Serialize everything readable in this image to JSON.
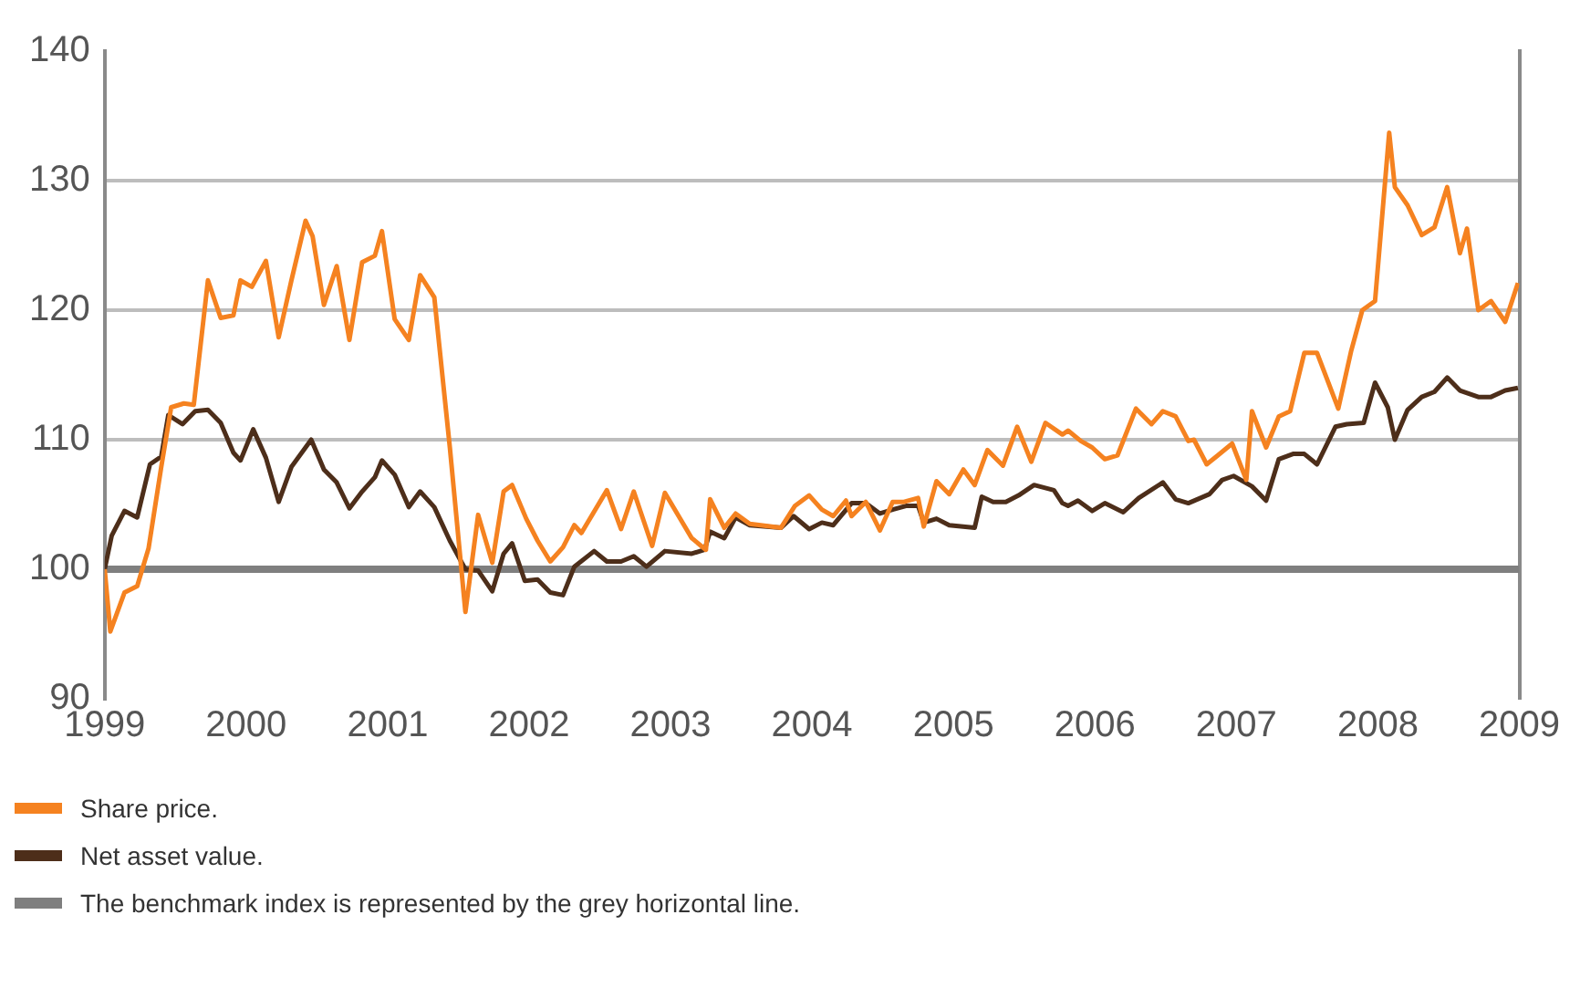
{
  "chart_data": {
    "type": "line",
    "xlim": [
      1999,
      2009
    ],
    "xticks": [
      1999,
      2000,
      2001,
      2002,
      2003,
      2004,
      2005,
      2006,
      2007,
      2008,
      2009
    ],
    "ylim": [
      90,
      140
    ],
    "yticks": [
      90,
      100,
      110,
      120,
      130,
      140
    ],
    "grid": "y",
    "legend": "bottom",
    "marker": "none",
    "line_style": "solid",
    "ref_lines": [
      {
        "axis": "y",
        "value": 100,
        "label": "The benchmark index is represented by the grey horizontal line.",
        "color": "#7f7f7f"
      }
    ],
    "series": [
      {
        "name": "Share price.",
        "color": "#f58220",
        "x": [
          1999.0,
          1999.04,
          1999.14,
          1999.23,
          1999.31,
          1999.4,
          1999.47,
          1999.56,
          1999.63,
          1999.73,
          1999.82,
          1999.91,
          1999.96,
          2000.04,
          2000.14,
          2000.23,
          2000.32,
          2000.42,
          2000.47,
          2000.55,
          2000.64,
          2000.73,
          2000.82,
          2000.91,
          2000.96,
          2001.05,
          2001.15,
          2001.23,
          2001.33,
          2001.44,
          2001.55,
          2001.64,
          2001.74,
          2001.82,
          2001.88,
          2001.98,
          2002.06,
          2002.15,
          2002.24,
          2002.32,
          2002.37,
          2002.55,
          2002.65,
          2002.74,
          2002.87,
          2002.96,
          2003.15,
          2003.25,
          2003.28,
          2003.38,
          2003.46,
          2003.56,
          2003.78,
          2003.88,
          2003.98,
          2004.07,
          2004.15,
          2004.24,
          2004.28,
          2004.38,
          2004.48,
          2004.57,
          2004.65,
          2004.75,
          2004.79,
          2004.88,
          2004.97,
          2005.07,
          2005.15,
          2005.24,
          2005.35,
          2005.45,
          2005.55,
          2005.65,
          2005.77,
          2005.81,
          2005.9,
          2005.98,
          2006.07,
          2006.16,
          2006.29,
          2006.4,
          2006.48,
          2006.57,
          2006.66,
          2006.7,
          2006.79,
          2006.87,
          2006.97,
          2007.07,
          2007.11,
          2007.21,
          2007.3,
          2007.38,
          2007.48,
          2007.57,
          2007.72,
          2007.81,
          2007.89,
          2007.98,
          2008.08,
          2008.12,
          2008.21,
          2008.31,
          2008.4,
          2008.49,
          2008.58,
          2008.63,
          2008.71,
          2008.8,
          2008.9,
          2008.99
        ],
        "values": [
          100,
          95.2,
          98.2,
          98.7,
          101.6,
          107.9,
          112.5,
          112.8,
          112.7,
          122.3,
          119.4,
          119.6,
          122.3,
          121.8,
          123.8,
          117.9,
          122.3,
          126.9,
          125.7,
          120.4,
          123.4,
          117.7,
          123.7,
          124.2,
          126.1,
          119.3,
          117.7,
          122.7,
          121,
          109.4,
          96.7,
          104.2,
          100.5,
          106,
          106.5,
          103.9,
          102.2,
          100.6,
          101.7,
          103.4,
          102.8,
          106.1,
          103.1,
          106,
          101.8,
          105.9,
          102.4,
          101.5,
          105.4,
          103.2,
          104.3,
          103.5,
          103.2,
          104.9,
          105.7,
          104.6,
          104.1,
          105.3,
          104.1,
          105.2,
          103,
          105.2,
          105.2,
          105.5,
          103.3,
          106.8,
          105.8,
          107.7,
          106.5,
          109.2,
          108,
          111,
          108.3,
          111.3,
          110.4,
          110.7,
          109.9,
          109.4,
          108.5,
          108.8,
          112.4,
          111.2,
          112.2,
          111.8,
          109.9,
          110,
          108.1,
          108.8,
          109.7,
          106.9,
          112.2,
          109.4,
          111.8,
          112.2,
          116.7,
          116.7,
          112.4,
          116.8,
          120,
          120.7,
          133.7,
          129.5,
          128.1,
          125.8,
          126.4,
          129.5,
          124.4,
          126.3,
          120,
          120.7,
          119.1,
          122.1
        ]
      },
      {
        "name": "Net asset value.",
        "color": "#4d2e1a",
        "x": [
          1999.0,
          1999.05,
          1999.14,
          1999.23,
          1999.32,
          1999.4,
          1999.45,
          1999.55,
          1999.64,
          1999.73,
          1999.82,
          1999.91,
          1999.96,
          2000.05,
          2000.14,
          2000.23,
          2000.32,
          2000.46,
          2000.55,
          2000.64,
          2000.73,
          2000.82,
          2000.91,
          2000.96,
          2001.05,
          2001.15,
          2001.23,
          2001.33,
          2001.44,
          2001.55,
          2001.64,
          2001.74,
          2001.82,
          2001.88,
          2001.97,
          2002.06,
          2002.15,
          2002.24,
          2002.32,
          2002.46,
          2002.55,
          2002.65,
          2002.74,
          2002.83,
          2002.96,
          2003.15,
          2003.24,
          2003.28,
          2003.38,
          2003.46,
          2003.56,
          2003.78,
          2003.87,
          2003.98,
          2004.07,
          2004.15,
          2004.28,
          2004.38,
          2004.48,
          2004.57,
          2004.67,
          2004.75,
          2004.79,
          2004.88,
          2004.97,
          2005.15,
          2005.2,
          2005.28,
          2005.37,
          2005.46,
          2005.57,
          2005.71,
          2005.77,
          2005.81,
          2005.88,
          2005.98,
          2006.07,
          2006.2,
          2006.31,
          2006.48,
          2006.57,
          2006.66,
          2006.81,
          2006.9,
          2006.98,
          2007.11,
          2007.21,
          2007.3,
          2007.4,
          2007.48,
          2007.57,
          2007.7,
          2007.78,
          2007.9,
          2007.98,
          2008.07,
          2008.12,
          2008.21,
          2008.31,
          2008.4,
          2008.49,
          2008.58,
          2008.71,
          2008.8,
          2008.9,
          2008.99
        ],
        "values": [
          100,
          102.6,
          104.5,
          104,
          108.1,
          108.7,
          111.9,
          111.2,
          112.2,
          112.3,
          111.3,
          109,
          108.4,
          110.8,
          108.6,
          105.2,
          107.9,
          110,
          107.7,
          106.7,
          104.7,
          106,
          107.1,
          108.4,
          107.3,
          104.8,
          106,
          104.8,
          102.2,
          100,
          99.9,
          98.3,
          101.2,
          102,
          99.1,
          99.2,
          98.2,
          98,
          100.2,
          101.4,
          100.6,
          100.6,
          101,
          100.2,
          101.4,
          101.2,
          101.5,
          102.9,
          102.4,
          104,
          103.4,
          103.2,
          104.1,
          103.1,
          103.6,
          103.4,
          105.1,
          105.1,
          104.3,
          104.6,
          104.9,
          104.9,
          103.6,
          103.9,
          103.4,
          103.2,
          105.6,
          105.2,
          105.2,
          105.7,
          106.5,
          106.1,
          105.1,
          104.9,
          105.3,
          104.5,
          105.1,
          104.4,
          105.5,
          106.7,
          105.4,
          105.1,
          105.8,
          106.9,
          107.2,
          106.4,
          105.3,
          108.5,
          108.9,
          108.9,
          108.1,
          111,
          111.2,
          111.3,
          114.4,
          112.5,
          110,
          112.3,
          113.3,
          113.7,
          114.8,
          113.8,
          113.3,
          113.3,
          113.8,
          114
        ]
      }
    ]
  }
}
